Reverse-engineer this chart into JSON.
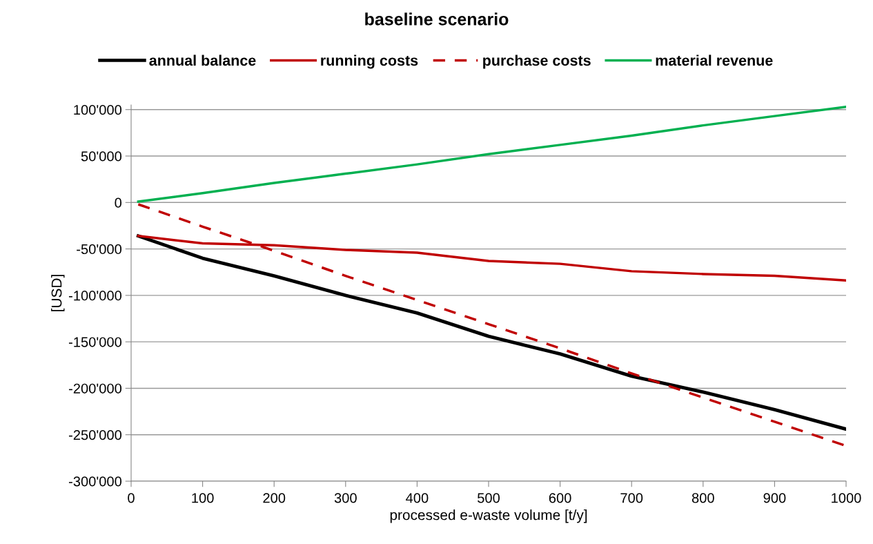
{
  "chart_data": {
    "type": "line",
    "title": "baseline scenario",
    "xlabel": "processed e-waste volume [t/y]",
    "ylabel": "[USD]",
    "x": [
      10,
      100,
      200,
      300,
      400,
      500,
      600,
      700,
      800,
      900,
      1000
    ],
    "series": [
      {
        "name": "annual balance",
        "color": "#000000",
        "values": [
          -36000,
          -60000,
          -79000,
          -100000,
          -119000,
          -144000,
          -163000,
          -187000,
          -204000,
          -223000,
          -244000
        ]
      },
      {
        "name": "running costs",
        "color": "#c00000",
        "values": [
          -36000,
          -44000,
          -46000,
          -51000,
          -54000,
          -63000,
          -66000,
          -74000,
          -77000,
          -79000,
          -84000
        ]
      },
      {
        "name": "purchase costs",
        "color": "#c00000",
        "line_style": "dashed",
        "values": [
          -2000,
          -26000,
          -52000,
          -79000,
          -105000,
          -131000,
          -157000,
          -184000,
          -210000,
          -236000,
          -262000
        ]
      },
      {
        "name": "material revenue",
        "color": "#00b050",
        "values": [
          1000,
          10000,
          21000,
          31000,
          41000,
          52000,
          62000,
          72000,
          83000,
          93000,
          103000
        ]
      }
    ],
    "xlim": [
      0,
      1000
    ],
    "xticks": [
      0,
      100,
      200,
      300,
      400,
      500,
      600,
      700,
      800,
      900,
      1000
    ],
    "ylim": [
      -300000,
      105000
    ],
    "yticks": [
      {
        "value": -300000,
        "label": "-300'000"
      },
      {
        "value": -250000,
        "label": "-250'000"
      },
      {
        "value": -200000,
        "label": "-200'000"
      },
      {
        "value": -150000,
        "label": "-150'000"
      },
      {
        "value": -100000,
        "label": "-100'000"
      },
      {
        "value": -50000,
        "label": "-50'000"
      },
      0,
      {
        "value": 50000,
        "label": "50'000"
      },
      {
        "value": 100000,
        "label": "100'000"
      }
    ],
    "grid": "y",
    "legend": "top",
    "marker": "none",
    "line_style": "solid"
  }
}
